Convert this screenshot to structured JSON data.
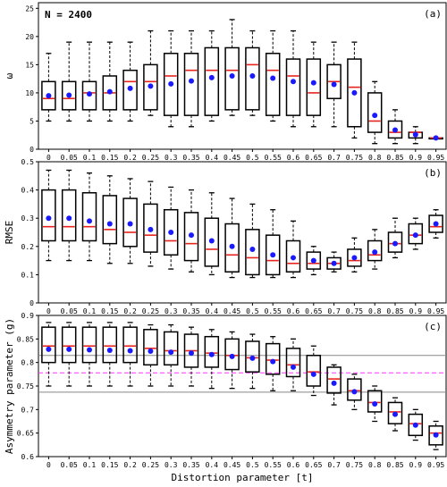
{
  "sample_note": "N = 2400",
  "xlabel": "Distortion parameter [t]",
  "categories": [
    "0",
    "0.05",
    "0.1",
    "0.15",
    "0.2",
    "0.25",
    "0.3",
    "0.35",
    "0.4",
    "0.45",
    "0.5",
    "0.55",
    "0.6",
    "0.65",
    "0.7",
    "0.75",
    "0.8",
    "0.85",
    "0.9",
    "0.95"
  ],
  "colors": {
    "median": "#e8221c",
    "mean": "#1a1aff",
    "box": "#000000",
    "reference_dashed": "#ff33ff",
    "reference_solid": "#888888"
  },
  "chart_data": [
    {
      "type": "boxplot",
      "panel_label": "(a)",
      "ylabel": "ω",
      "ylim": [
        0,
        26
      ],
      "yticks": [
        0,
        5,
        10,
        15,
        20,
        25
      ],
      "series": [
        {
          "q1": 7,
          "q3": 12,
          "median": 9,
          "mean": 9.5,
          "whisker_low": 5,
          "whisker_high": 17
        },
        {
          "q1": 7,
          "q3": 12,
          "median": 9,
          "mean": 9.6,
          "whisker_low": 5,
          "whisker_high": 19
        },
        {
          "q1": 7,
          "q3": 12,
          "median": 10,
          "mean": 9.8,
          "whisker_low": 5,
          "whisker_high": 19
        },
        {
          "q1": 7,
          "q3": 13,
          "median": 10,
          "mean": 10.2,
          "whisker_low": 5,
          "whisker_high": 19
        },
        {
          "q1": 7,
          "q3": 14,
          "median": 12,
          "mean": 10.8,
          "whisker_low": 5,
          "whisker_high": 19
        },
        {
          "q1": 7,
          "q3": 15,
          "median": 12,
          "mean": 11.2,
          "whisker_low": 6,
          "whisker_high": 21
        },
        {
          "q1": 6,
          "q3": 17,
          "median": 13,
          "mean": 11.6,
          "whisker_low": 4,
          "whisker_high": 21
        },
        {
          "q1": 6,
          "q3": 17,
          "median": 14,
          "mean": 12.1,
          "whisker_low": 4,
          "whisker_high": 21
        },
        {
          "q1": 6,
          "q3": 18,
          "median": 14,
          "mean": 12.7,
          "whisker_low": 5,
          "whisker_high": 21
        },
        {
          "q1": 7,
          "q3": 18,
          "median": 14,
          "mean": 13.0,
          "whisker_low": 6,
          "whisker_high": 23
        },
        {
          "q1": 7,
          "q3": 18,
          "median": 15,
          "mean": 13.0,
          "whisker_low": 6,
          "whisker_high": 21
        },
        {
          "q1": 6,
          "q3": 17,
          "median": 14,
          "mean": 12.6,
          "whisker_low": 5,
          "whisker_high": 21
        },
        {
          "q1": 6,
          "q3": 16,
          "median": 13,
          "mean": 12.0,
          "whisker_low": 4,
          "whisker_high": 21
        },
        {
          "q1": 6,
          "q3": 16,
          "median": 10,
          "mean": 11.8,
          "whisker_low": 4,
          "whisker_high": 19
        },
        {
          "q1": 9,
          "q3": 15,
          "median": 12,
          "mean": 11.5,
          "whisker_low": 4,
          "whisker_high": 19
        },
        {
          "q1": 4,
          "q3": 16,
          "median": 11,
          "mean": 10,
          "whisker_low": 2,
          "whisker_high": 19
        },
        {
          "q1": 3,
          "q3": 10,
          "median": 5,
          "mean": 6,
          "whisker_low": 1,
          "whisker_high": 12
        },
        {
          "q1": 2,
          "q3": 5,
          "median": 3,
          "mean": 3.4,
          "whisker_low": 1,
          "whisker_high": 7
        },
        {
          "q1": 2,
          "q3": 3,
          "median": 3,
          "mean": 2.6,
          "whisker_low": 1,
          "whisker_high": 4
        },
        {
          "q1": 2,
          "q3": 2,
          "median": 2,
          "mean": 2,
          "whisker_low": 2,
          "whisker_high": 2
        }
      ]
    },
    {
      "type": "boxplot",
      "panel_label": "(b)",
      "ylabel": "RMSE",
      "ylim": [
        0,
        0.5
      ],
      "yticks": [
        0,
        0.1,
        0.2,
        0.3,
        0.4,
        0.5
      ],
      "series": [
        {
          "q1": 0.22,
          "q3": 0.4,
          "median": 0.27,
          "mean": 0.3,
          "whisker_low": 0.15,
          "whisker_high": 0.47
        },
        {
          "q1": 0.22,
          "q3": 0.4,
          "median": 0.27,
          "mean": 0.3,
          "whisker_low": 0.15,
          "whisker_high": 0.47
        },
        {
          "q1": 0.22,
          "q3": 0.39,
          "median": 0.27,
          "mean": 0.29,
          "whisker_low": 0.15,
          "whisker_high": 0.46
        },
        {
          "q1": 0.21,
          "q3": 0.38,
          "median": 0.26,
          "mean": 0.28,
          "whisker_low": 0.14,
          "whisker_high": 0.45
        },
        {
          "q1": 0.2,
          "q3": 0.37,
          "median": 0.25,
          "mean": 0.28,
          "whisker_low": 0.14,
          "whisker_high": 0.44
        },
        {
          "q1": 0.18,
          "q3": 0.35,
          "median": 0.24,
          "mean": 0.26,
          "whisker_low": 0.13,
          "whisker_high": 0.43
        },
        {
          "q1": 0.17,
          "q3": 0.33,
          "median": 0.22,
          "mean": 0.25,
          "whisker_low": 0.12,
          "whisker_high": 0.41
        },
        {
          "q1": 0.15,
          "q3": 0.32,
          "median": 0.21,
          "mean": 0.24,
          "whisker_low": 0.11,
          "whisker_high": 0.4
        },
        {
          "q1": 0.13,
          "q3": 0.3,
          "median": 0.19,
          "mean": 0.22,
          "whisker_low": 0.1,
          "whisker_high": 0.39
        },
        {
          "q1": 0.11,
          "q3": 0.28,
          "median": 0.17,
          "mean": 0.2,
          "whisker_low": 0.09,
          "whisker_high": 0.37
        },
        {
          "q1": 0.1,
          "q3": 0.26,
          "median": 0.16,
          "mean": 0.19,
          "whisker_low": 0.09,
          "whisker_high": 0.35
        },
        {
          "q1": 0.1,
          "q3": 0.24,
          "median": 0.15,
          "mean": 0.17,
          "whisker_low": 0.09,
          "whisker_high": 0.33
        },
        {
          "q1": 0.11,
          "q3": 0.22,
          "median": 0.14,
          "mean": 0.16,
          "whisker_low": 0.09,
          "whisker_high": 0.29
        },
        {
          "q1": 0.12,
          "q3": 0.18,
          "median": 0.14,
          "mean": 0.15,
          "whisker_low": 0.1,
          "whisker_high": 0.2
        },
        {
          "q1": 0.12,
          "q3": 0.16,
          "median": 0.14,
          "mean": 0.14,
          "whisker_low": 0.11,
          "whisker_high": 0.18
        },
        {
          "q1": 0.13,
          "q3": 0.19,
          "median": 0.15,
          "mean": 0.16,
          "whisker_low": 0.11,
          "whisker_high": 0.23
        },
        {
          "q1": 0.15,
          "q3": 0.22,
          "median": 0.17,
          "mean": 0.18,
          "whisker_low": 0.12,
          "whisker_high": 0.26
        },
        {
          "q1": 0.18,
          "q3": 0.25,
          "median": 0.21,
          "mean": 0.21,
          "whisker_low": 0.16,
          "whisker_high": 0.3
        },
        {
          "q1": 0.21,
          "q3": 0.28,
          "median": 0.24,
          "mean": 0.24,
          "whisker_low": 0.19,
          "whisker_high": 0.3
        },
        {
          "q1": 0.25,
          "q3": 0.31,
          "median": 0.27,
          "mean": 0.28,
          "whisker_low": 0.23,
          "whisker_high": 0.33
        }
      ]
    },
    {
      "type": "boxplot",
      "panel_label": "(c)",
      "ylabel": "Asymmetry parameter (g)",
      "ylim": [
        0.6,
        0.9
      ],
      "yticks": [
        0.6,
        0.65,
        0.7,
        0.75,
        0.8,
        0.85,
        0.9
      ],
      "reference_lines": [
        {
          "y": 0.815,
          "style": "solid"
        },
        {
          "y": 0.778,
          "style": "dashed"
        },
        {
          "y": 0.737,
          "style": "solid"
        }
      ],
      "series": [
        {
          "q1": 0.8,
          "q3": 0.875,
          "median": 0.835,
          "mean": 0.828,
          "whisker_low": 0.75,
          "whisker_high": 0.885
        },
        {
          "q1": 0.8,
          "q3": 0.875,
          "median": 0.835,
          "mean": 0.828,
          "whisker_low": 0.75,
          "whisker_high": 0.885
        },
        {
          "q1": 0.8,
          "q3": 0.875,
          "median": 0.835,
          "mean": 0.827,
          "whisker_low": 0.75,
          "whisker_high": 0.885
        },
        {
          "q1": 0.8,
          "q3": 0.875,
          "median": 0.835,
          "mean": 0.826,
          "whisker_low": 0.75,
          "whisker_high": 0.885
        },
        {
          "q1": 0.8,
          "q3": 0.875,
          "median": 0.835,
          "mean": 0.825,
          "whisker_low": 0.75,
          "whisker_high": 0.885
        },
        {
          "q1": 0.795,
          "q3": 0.87,
          "median": 0.83,
          "mean": 0.824,
          "whisker_low": 0.75,
          "whisker_high": 0.88
        },
        {
          "q1": 0.795,
          "q3": 0.865,
          "median": 0.825,
          "mean": 0.822,
          "whisker_low": 0.75,
          "whisker_high": 0.88
        },
        {
          "q1": 0.79,
          "q3": 0.86,
          "median": 0.825,
          "mean": 0.82,
          "whisker_low": 0.75,
          "whisker_high": 0.875
        },
        {
          "q1": 0.79,
          "q3": 0.855,
          "median": 0.82,
          "mean": 0.817,
          "whisker_low": 0.745,
          "whisker_high": 0.87
        },
        {
          "q1": 0.785,
          "q3": 0.85,
          "median": 0.815,
          "mean": 0.813,
          "whisker_low": 0.745,
          "whisker_high": 0.865
        },
        {
          "q1": 0.78,
          "q3": 0.845,
          "median": 0.81,
          "mean": 0.809,
          "whisker_low": 0.745,
          "whisker_high": 0.86
        },
        {
          "q1": 0.775,
          "q3": 0.84,
          "median": 0.805,
          "mean": 0.802,
          "whisker_low": 0.74,
          "whisker_high": 0.855
        },
        {
          "q1": 0.77,
          "q3": 0.83,
          "median": 0.795,
          "mean": 0.79,
          "whisker_low": 0.74,
          "whisker_high": 0.85
        },
        {
          "q1": 0.75,
          "q3": 0.815,
          "median": 0.78,
          "mean": 0.775,
          "whisker_low": 0.73,
          "whisker_high": 0.835
        },
        {
          "q1": 0.735,
          "q3": 0.79,
          "median": 0.765,
          "mean": 0.756,
          "whisker_low": 0.71,
          "whisker_high": 0.795
        },
        {
          "q1": 0.72,
          "q3": 0.765,
          "median": 0.74,
          "mean": 0.738,
          "whisker_low": 0.7,
          "whisker_high": 0.775
        },
        {
          "q1": 0.695,
          "q3": 0.74,
          "median": 0.715,
          "mean": 0.712,
          "whisker_low": 0.675,
          "whisker_high": 0.75
        },
        {
          "q1": 0.67,
          "q3": 0.715,
          "median": 0.695,
          "mean": 0.69,
          "whisker_low": 0.655,
          "whisker_high": 0.725
        },
        {
          "q1": 0.645,
          "q3": 0.69,
          "median": 0.67,
          "mean": 0.667,
          "whisker_low": 0.635,
          "whisker_high": 0.7
        },
        {
          "q1": 0.625,
          "q3": 0.665,
          "median": 0.65,
          "mean": 0.646,
          "whisker_low": 0.615,
          "whisker_high": 0.675
        }
      ]
    }
  ]
}
